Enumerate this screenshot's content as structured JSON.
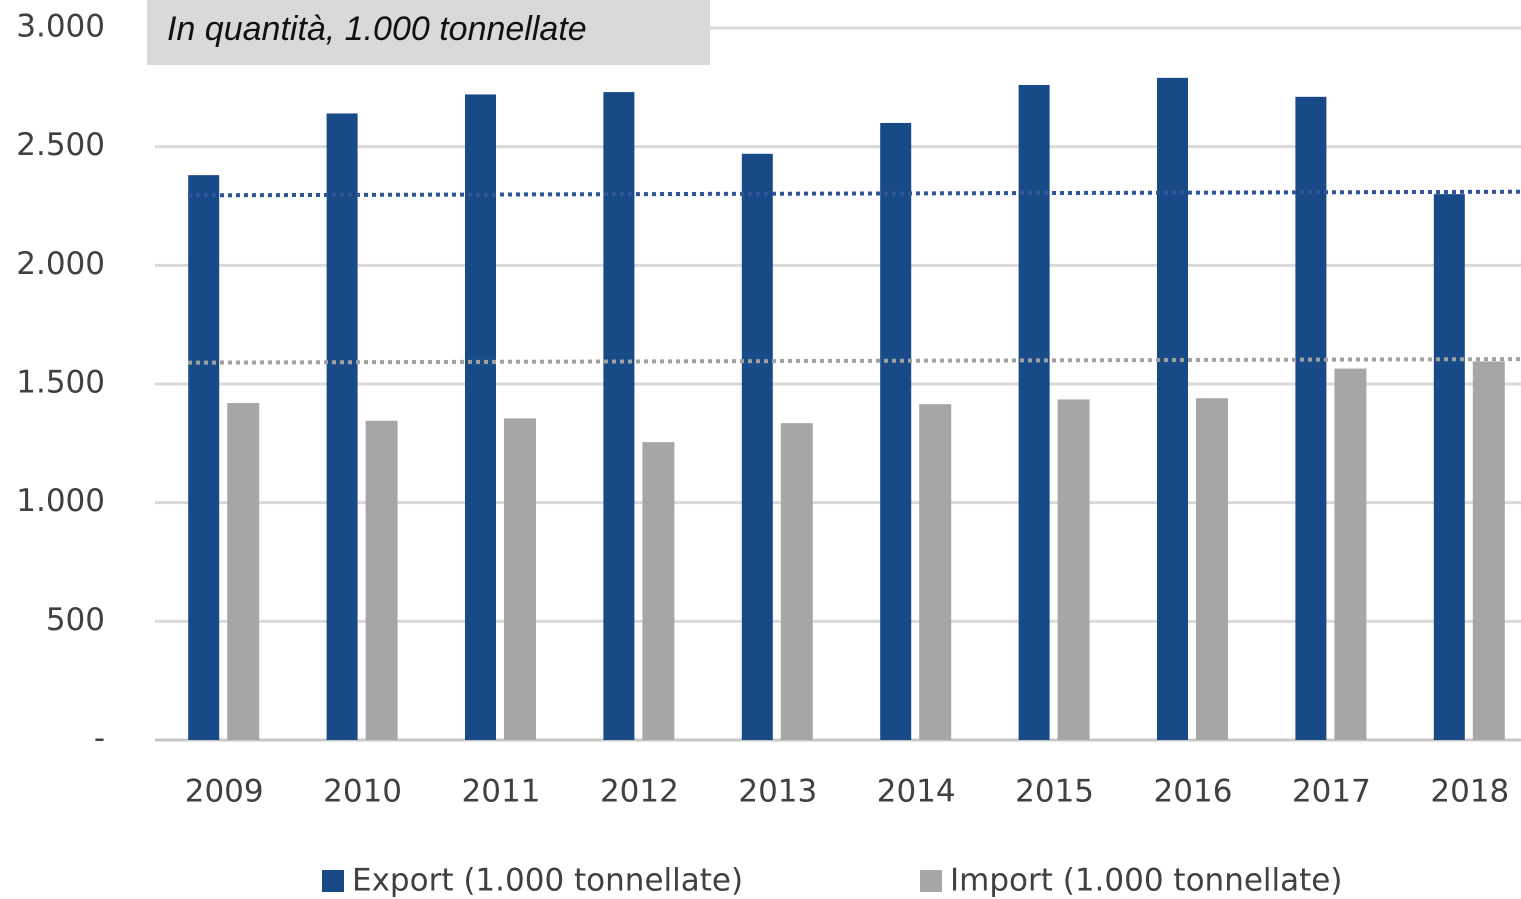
{
  "chart_data": {
    "type": "bar",
    "title": "In quantità, 1.000 tonnellate",
    "categories": [
      "2009",
      "2010",
      "2011",
      "2012",
      "2013",
      "2014",
      "2015",
      "2016",
      "2017",
      "2018"
    ],
    "series": [
      {
        "name": "Export (1.000 tonnellate)",
        "color": "#174a87",
        "values": [
          2380,
          2640,
          2720,
          2730,
          2470,
          2600,
          2760,
          2790,
          2710,
          2300
        ],
        "trendline": [
          2295,
          2310
        ],
        "trend_color": "#2f5597"
      },
      {
        "name": "Import (1.000 tonnellate)",
        "color": "#a6a6a6",
        "values": [
          1420,
          1345,
          1355,
          1255,
          1335,
          1415,
          1435,
          1440,
          1565,
          1595
        ],
        "trendline": [
          1590,
          1605
        ],
        "trend_color": "#a0a0a0"
      }
    ],
    "ylim": [
      0,
      3000
    ],
    "yticks": [
      {
        "value": 0,
        "label": "-"
      },
      500,
      {
        "value": 1000,
        "label": "1.000"
      },
      {
        "value": 1500,
        "label": "1.500"
      },
      {
        "value": 2000,
        "label": "2.000"
      },
      {
        "value": 2500,
        "label": "2.500"
      },
      {
        "value": 3000,
        "label": "3.000"
      }
    ],
    "grid": true,
    "legend": "bottom"
  }
}
